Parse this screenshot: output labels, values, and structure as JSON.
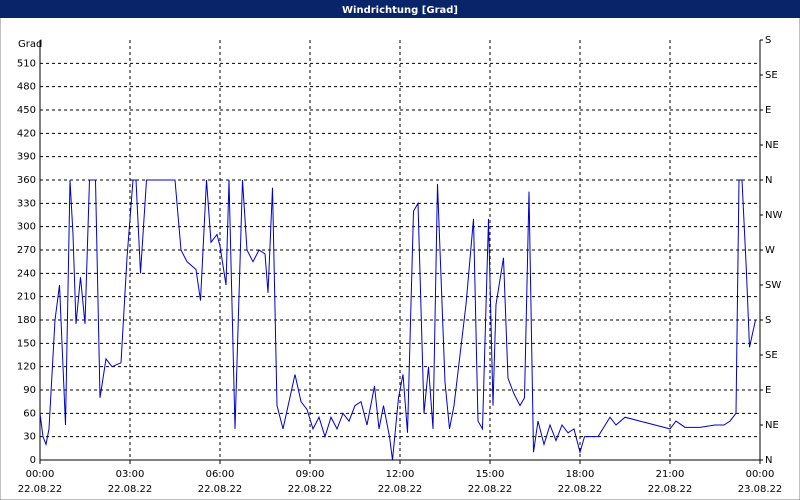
{
  "chart_data": {
    "type": "line",
    "title": "Windrichtung [Grad]",
    "ylabel": "Grad",
    "color": "#0000cc",
    "grid": true,
    "x": [
      0,
      0.1,
      0.2,
      0.3,
      0.5,
      0.65,
      0.85,
      1.0,
      1.1,
      1.2,
      1.35,
      1.5,
      1.65,
      1.85,
      2.0,
      2.2,
      2.4,
      2.7,
      2.9,
      3.1,
      3.2,
      3.35,
      3.55,
      4.5,
      4.7,
      4.9,
      5.2,
      5.35,
      5.55,
      5.7,
      5.9,
      6.0,
      6.2,
      6.3,
      6.5,
      6.75,
      6.9,
      7.1,
      7.3,
      7.5,
      7.6,
      7.75,
      7.9,
      8.1,
      8.5,
      8.7,
      8.9,
      9.1,
      9.3,
      9.5,
      9.7,
      9.9,
      10.1,
      10.3,
      10.5,
      10.7,
      10.9,
      11.15,
      11.3,
      11.45,
      11.65,
      11.75,
      11.95,
      12.1,
      12.25,
      12.45,
      12.6,
      12.8,
      12.95,
      13.1,
      13.25,
      13.5,
      13.65,
      13.8,
      14.2,
      14.45,
      14.6,
      14.75,
      14.95,
      15.1,
      15.2,
      15.45,
      15.6,
      15.8,
      16.0,
      16.15,
      16.3,
      16.45,
      16.6,
      16.8,
      17.0,
      17.2,
      17.4,
      17.6,
      17.8,
      18.0,
      18.15,
      18.4,
      18.6,
      19.0,
      19.2,
      19.5,
      20.0,
      20.5,
      21.0,
      21.2,
      21.5,
      22.0,
      22.5,
      22.8,
      23.0,
      23.2,
      23.3,
      23.4,
      23.55,
      23.65,
      23.85
    ],
    "values": [
      60,
      30,
      20,
      40,
      180,
      225,
      45,
      360,
      290,
      175,
      235,
      175,
      360,
      360,
      80,
      130,
      120,
      125,
      260,
      360,
      360,
      240,
      360,
      360,
      270,
      255,
      245,
      205,
      360,
      280,
      290,
      275,
      225,
      360,
      40,
      360,
      270,
      255,
      270,
      265,
      215,
      350,
      70,
      40,
      110,
      75,
      65,
      40,
      55,
      30,
      55,
      40,
      60,
      50,
      70,
      75,
      45,
      95,
      40,
      70,
      30,
      0,
      80,
      110,
      35,
      320,
      330,
      60,
      120,
      40,
      355,
      100,
      40,
      70,
      200,
      310,
      50,
      40,
      310,
      70,
      200,
      260,
      105,
      85,
      70,
      80,
      345,
      10,
      50,
      20,
      45,
      25,
      45,
      35,
      40,
      10,
      30,
      30,
      30,
      55,
      45,
      55,
      50,
      45,
      40,
      50,
      42,
      42,
      45,
      45,
      50,
      60,
      360,
      360,
      240,
      145,
      180
    ],
    "xlim": [
      0,
      24
    ],
    "xticks": [
      {
        "value": 0,
        "label": "00:00"
      },
      {
        "value": 3,
        "label": "03:00"
      },
      {
        "value": 6,
        "label": "06:00"
      },
      {
        "value": 9,
        "label": "09:00"
      },
      {
        "value": 12,
        "label": "12:00"
      },
      {
        "value": 15,
        "label": "15:00"
      },
      {
        "value": 18,
        "label": "18:00"
      },
      {
        "value": 21,
        "label": "21:00"
      },
      {
        "value": 24,
        "label": "00:00"
      }
    ],
    "xtick_dates": [
      "22.08.22",
      "22.08.22",
      "22.08.22",
      "22.08.22",
      "22.08.22",
      "22.08.22",
      "22.08.22",
      "22.08.22",
      "23.08.22"
    ],
    "ylim": [
      0,
      540
    ],
    "yticks": [
      0,
      30,
      60,
      90,
      120,
      150,
      180,
      210,
      240,
      270,
      300,
      330,
      360,
      390,
      420,
      450,
      480,
      510
    ],
    "y2lim": [
      0,
      540
    ],
    "y2ticks": [
      {
        "value": 0,
        "label": "N"
      },
      {
        "value": 45,
        "label": "NE"
      },
      {
        "value": 90,
        "label": "E"
      },
      {
        "value": 135,
        "label": "SE"
      },
      {
        "value": 180,
        "label": "S"
      },
      {
        "value": 225,
        "label": "SW"
      },
      {
        "value": 270,
        "label": "W"
      },
      {
        "value": 315,
        "label": "NW"
      },
      {
        "value": 360,
        "label": "N"
      },
      {
        "value": 405,
        "label": "NE"
      },
      {
        "value": 450,
        "label": "E"
      },
      {
        "value": 495,
        "label": "SE"
      },
      {
        "value": 540,
        "label": "S"
      }
    ]
  }
}
